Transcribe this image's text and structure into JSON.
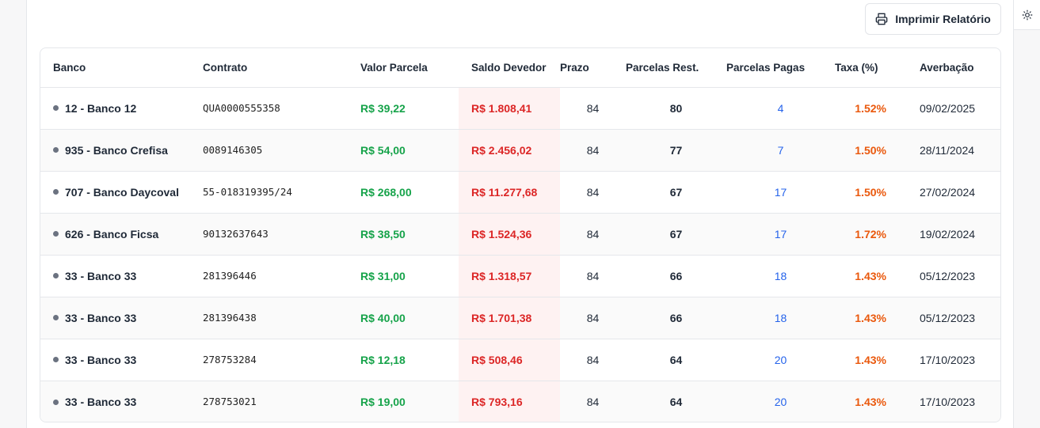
{
  "header": {
    "print_button_label": "Imprimir Relatório",
    "print_icon": "printer-icon",
    "theme_icon": "sun-icon"
  },
  "table": {
    "columns": [
      "Banco",
      "Contrato",
      "Valor Parcela",
      "Saldo Devedor",
      "Prazo",
      "Parcelas Rest.",
      "Parcelas Pagas",
      "Taxa (%)",
      "Averbação"
    ],
    "rows": [
      {
        "banco": "12 - Banco 12",
        "contrato": "QUA0000555358",
        "valor": "R$ 39,22",
        "saldo": "R$ 1.808,41",
        "prazo": "84",
        "rest": "80",
        "pagas": "4",
        "taxa": "1.52%",
        "averbacao": "09/02/2025"
      },
      {
        "banco": "935 - Banco Crefisa",
        "contrato": "0089146305",
        "valor": "R$ 54,00",
        "saldo": "R$ 2.456,02",
        "prazo": "84",
        "rest": "77",
        "pagas": "7",
        "taxa": "1.50%",
        "averbacao": "28/11/2024"
      },
      {
        "banco": "707 - Banco Daycoval",
        "contrato": "55-018319395/24",
        "valor": "R$ 268,00",
        "saldo": "R$ 11.277,68",
        "prazo": "84",
        "rest": "67",
        "pagas": "17",
        "taxa": "1.50%",
        "averbacao": "27/02/2024"
      },
      {
        "banco": "626 - Banco Ficsa",
        "contrato": "90132637643",
        "valor": "R$ 38,50",
        "saldo": "R$ 1.524,36",
        "prazo": "84",
        "rest": "67",
        "pagas": "17",
        "taxa": "1.72%",
        "averbacao": "19/02/2024"
      },
      {
        "banco": "33 - Banco 33",
        "contrato": "281396446",
        "valor": "R$ 31,00",
        "saldo": "R$ 1.318,57",
        "prazo": "84",
        "rest": "66",
        "pagas": "18",
        "taxa": "1.43%",
        "averbacao": "05/12/2023"
      },
      {
        "banco": "33 - Banco 33",
        "contrato": "281396438",
        "valor": "R$ 40,00",
        "saldo": "R$ 1.701,38",
        "prazo": "84",
        "rest": "66",
        "pagas": "18",
        "taxa": "1.43%",
        "averbacao": "05/12/2023"
      },
      {
        "banco": "33 - Banco 33",
        "contrato": "278753284",
        "valor": "R$ 12,18",
        "saldo": "R$ 508,46",
        "prazo": "84",
        "rest": "64",
        "pagas": "20",
        "taxa": "1.43%",
        "averbacao": "17/10/2023"
      },
      {
        "banco": "33 - Banco 33",
        "contrato": "278753021",
        "valor": "R$ 19,00",
        "saldo": "R$ 793,16",
        "prazo": "84",
        "rest": "64",
        "pagas": "20",
        "taxa": "1.43%",
        "averbacao": "17/10/2023"
      }
    ]
  },
  "colors": {
    "valor": "#16a34a",
    "saldo": "#dc2626",
    "saldo_bg": "#fef2f2",
    "pagas": "#2563eb",
    "taxa": "#ea580c"
  }
}
